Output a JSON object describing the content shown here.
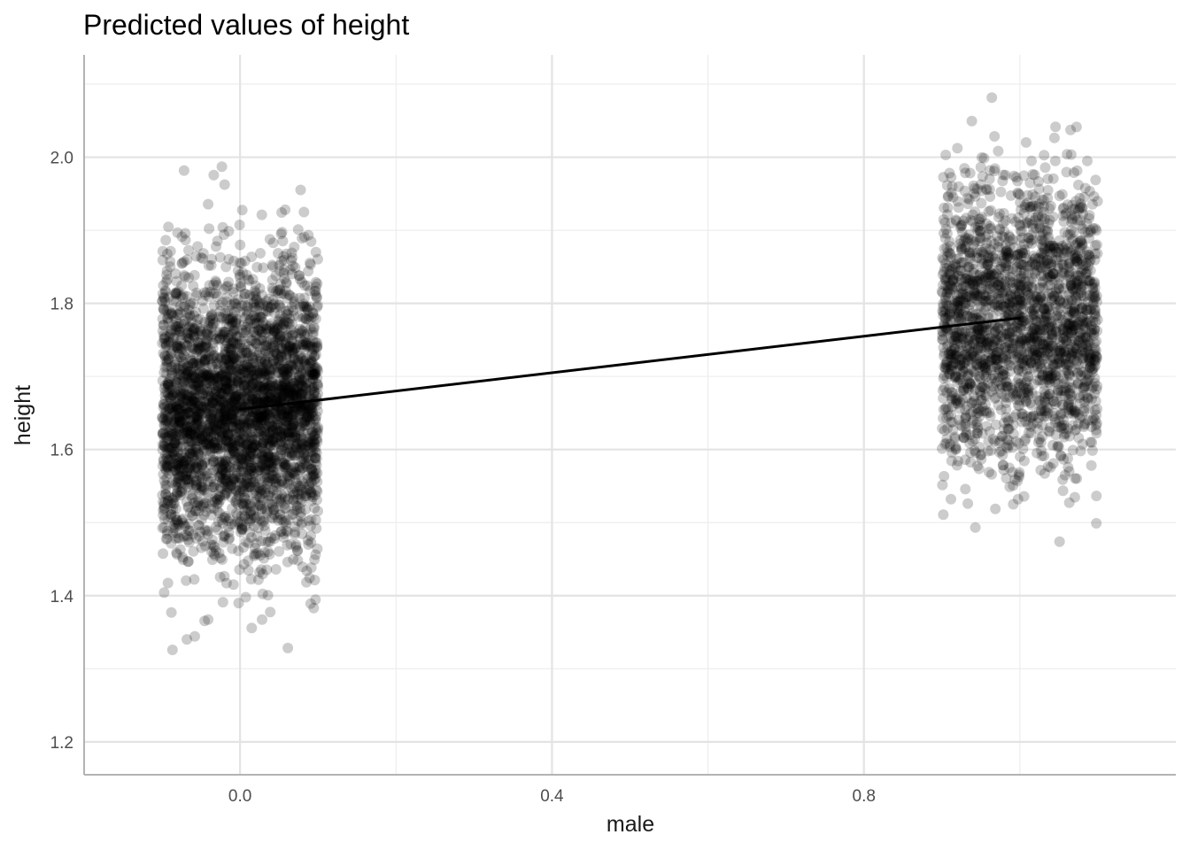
{
  "chart_data": {
    "type": "scatter",
    "title": "Predicted values of height",
    "xlabel": "male",
    "ylabel": "height",
    "xlim": [
      -0.2,
      1.2
    ],
    "ylim": [
      1.155,
      2.14
    ],
    "x_ticks": [
      {
        "value": 0.0,
        "label": "0.0"
      },
      {
        "value": 0.4,
        "label": "0.4"
      },
      {
        "value": 0.8,
        "label": "0.8"
      }
    ],
    "x_minor_ticks": [
      0.2,
      0.6,
      1.0
    ],
    "y_ticks": [
      {
        "value": 1.2,
        "label": "1.2"
      },
      {
        "value": 1.4,
        "label": "1.4"
      },
      {
        "value": 1.6,
        "label": "1.6"
      },
      {
        "value": 1.8,
        "label": "1.8"
      },
      {
        "value": 2.0,
        "label": "2.0"
      }
    ],
    "y_minor_ticks": [
      1.3,
      1.5,
      1.7,
      1.9,
      2.1
    ],
    "grid": true,
    "series": [
      {
        "kind": "jittered-points",
        "groups": [
          {
            "x": 0,
            "jitter_width": 0.1,
            "mean": 1.655,
            "sd": 0.095,
            "n": 3400,
            "range": [
              1.25,
              1.99
            ]
          },
          {
            "x": 1,
            "jitter_width": 0.1,
            "mean": 1.775,
            "sd": 0.095,
            "n": 2200,
            "range": [
              1.3,
              2.095
            ]
          }
        ],
        "color": "#000000",
        "opacity": 0.2
      },
      {
        "kind": "line",
        "x": [
          0,
          1
        ],
        "y": [
          1.655,
          1.78
        ],
        "color": "#000000"
      }
    ]
  }
}
